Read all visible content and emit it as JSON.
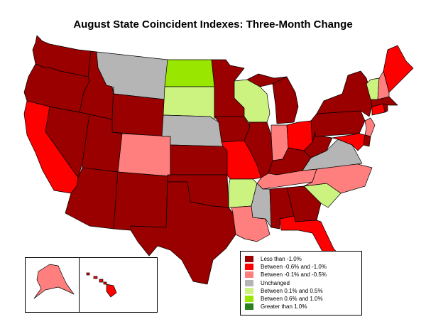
{
  "title": "August State Coincident Indexes: Three-Month Change",
  "colors": {
    "less_than_neg1": "#9b0000",
    "neg06_to_neg1": "#ff0000",
    "neg01_to_neg05": "#ff7f7f",
    "unchanged": "#b5b5b5",
    "pos01_to_05": "#ccf27f",
    "pos06_to_1": "#99e600",
    "greater_than_1": "#2a7f1f"
  },
  "legend": [
    {
      "label": "Less than -1.0%",
      "color_key": "less_than_neg1"
    },
    {
      "label": "Between -0.6% and -1.0%",
      "color_key": "neg06_to_neg1"
    },
    {
      "label": "Between -0.1% and -0.5%",
      "color_key": "neg01_to_neg05"
    },
    {
      "label": "Unchanged",
      "color_key": "unchanged"
    },
    {
      "label": "Between 0.1% and 0.5%",
      "color_key": "pos01_to_05"
    },
    {
      "label": "Between 0.6% and 1.0%",
      "color_key": "pos06_to_1"
    },
    {
      "label": "Greater than 1.0%",
      "color_key": "greater_than_1"
    }
  ],
  "states": [
    {
      "id": "WA",
      "category": "less_than_neg1"
    },
    {
      "id": "OR",
      "category": "less_than_neg1"
    },
    {
      "id": "CA",
      "category": "neg06_to_neg1"
    },
    {
      "id": "NV",
      "category": "less_than_neg1"
    },
    {
      "id": "ID",
      "category": "less_than_neg1"
    },
    {
      "id": "MT",
      "category": "unchanged"
    },
    {
      "id": "WY",
      "category": "less_than_neg1"
    },
    {
      "id": "UT",
      "category": "less_than_neg1"
    },
    {
      "id": "AZ",
      "category": "less_than_neg1"
    },
    {
      "id": "CO",
      "category": "neg01_to_neg05"
    },
    {
      "id": "NM",
      "category": "less_than_neg1"
    },
    {
      "id": "ND",
      "category": "pos06_to_1"
    },
    {
      "id": "SD",
      "category": "pos01_to_05"
    },
    {
      "id": "NE",
      "category": "unchanged"
    },
    {
      "id": "KS",
      "category": "less_than_neg1"
    },
    {
      "id": "OK",
      "category": "less_than_neg1"
    },
    {
      "id": "TX",
      "category": "less_than_neg1"
    },
    {
      "id": "MN",
      "category": "less_than_neg1"
    },
    {
      "id": "IA",
      "category": "less_than_neg1"
    },
    {
      "id": "MO",
      "category": "neg06_to_neg1"
    },
    {
      "id": "AR",
      "category": "pos01_to_05"
    },
    {
      "id": "LA",
      "category": "neg01_to_neg05"
    },
    {
      "id": "WI",
      "category": "pos01_to_05"
    },
    {
      "id": "IL",
      "category": "less_than_neg1"
    },
    {
      "id": "MI",
      "category": "less_than_neg1"
    },
    {
      "id": "IN",
      "category": "neg01_to_neg05"
    },
    {
      "id": "OH",
      "category": "neg06_to_neg1"
    },
    {
      "id": "KY",
      "category": "less_than_neg1"
    },
    {
      "id": "TN",
      "category": "neg01_to_neg05"
    },
    {
      "id": "MS",
      "category": "unchanged"
    },
    {
      "id": "AL",
      "category": "less_than_neg1"
    },
    {
      "id": "GA",
      "category": "less_than_neg1"
    },
    {
      "id": "FL",
      "category": "neg06_to_neg1"
    },
    {
      "id": "SC",
      "category": "pos01_to_05"
    },
    {
      "id": "NC",
      "category": "neg01_to_neg05"
    },
    {
      "id": "VA",
      "category": "unchanged"
    },
    {
      "id": "WV",
      "category": "less_than_neg1"
    },
    {
      "id": "PA",
      "category": "less_than_neg1"
    },
    {
      "id": "NY",
      "category": "less_than_neg1"
    },
    {
      "id": "NJ",
      "category": "neg01_to_neg05"
    },
    {
      "id": "DE",
      "category": "less_than_neg1"
    },
    {
      "id": "MD",
      "category": "neg06_to_neg1"
    },
    {
      "id": "CT",
      "category": "neg06_to_neg1"
    },
    {
      "id": "RI",
      "category": "less_than_neg1"
    },
    {
      "id": "MA",
      "category": "less_than_neg1"
    },
    {
      "id": "VT",
      "category": "pos01_to_05"
    },
    {
      "id": "NH",
      "category": "neg01_to_neg05"
    },
    {
      "id": "ME",
      "category": "neg06_to_neg1"
    },
    {
      "id": "AK",
      "category": "neg01_to_neg05"
    },
    {
      "id": "HI",
      "category": "neg06_to_neg1"
    }
  ]
}
